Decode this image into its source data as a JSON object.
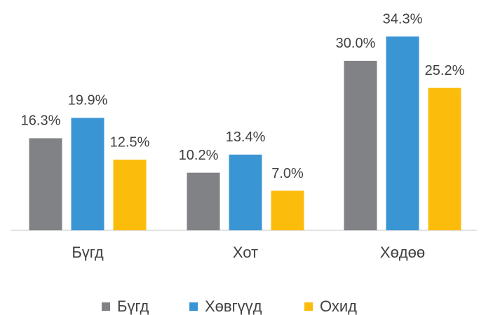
{
  "chart_data": {
    "type": "bar",
    "categories": [
      "Бүгд",
      "Хот",
      "Хөдөө"
    ],
    "series": [
      {
        "name": "Бүгд",
        "color": "#808285",
        "values": [
          16.3,
          10.2,
          30.0
        ],
        "value_labels": [
          "16.3%",
          "10.2%",
          "30.0%"
        ]
      },
      {
        "name": "Хөвгүүд",
        "color": "#3a95d5",
        "values": [
          19.9,
          13.4,
          34.3
        ],
        "value_labels": [
          "19.9%",
          "13.4%",
          "34.3%"
        ]
      },
      {
        "name": "Охид",
        "color": "#fbbc0c",
        "values": [
          12.5,
          7.0,
          25.2
        ],
        "value_labels": [
          "12.5%",
          "7.0%",
          "25.2%"
        ]
      }
    ]
  }
}
